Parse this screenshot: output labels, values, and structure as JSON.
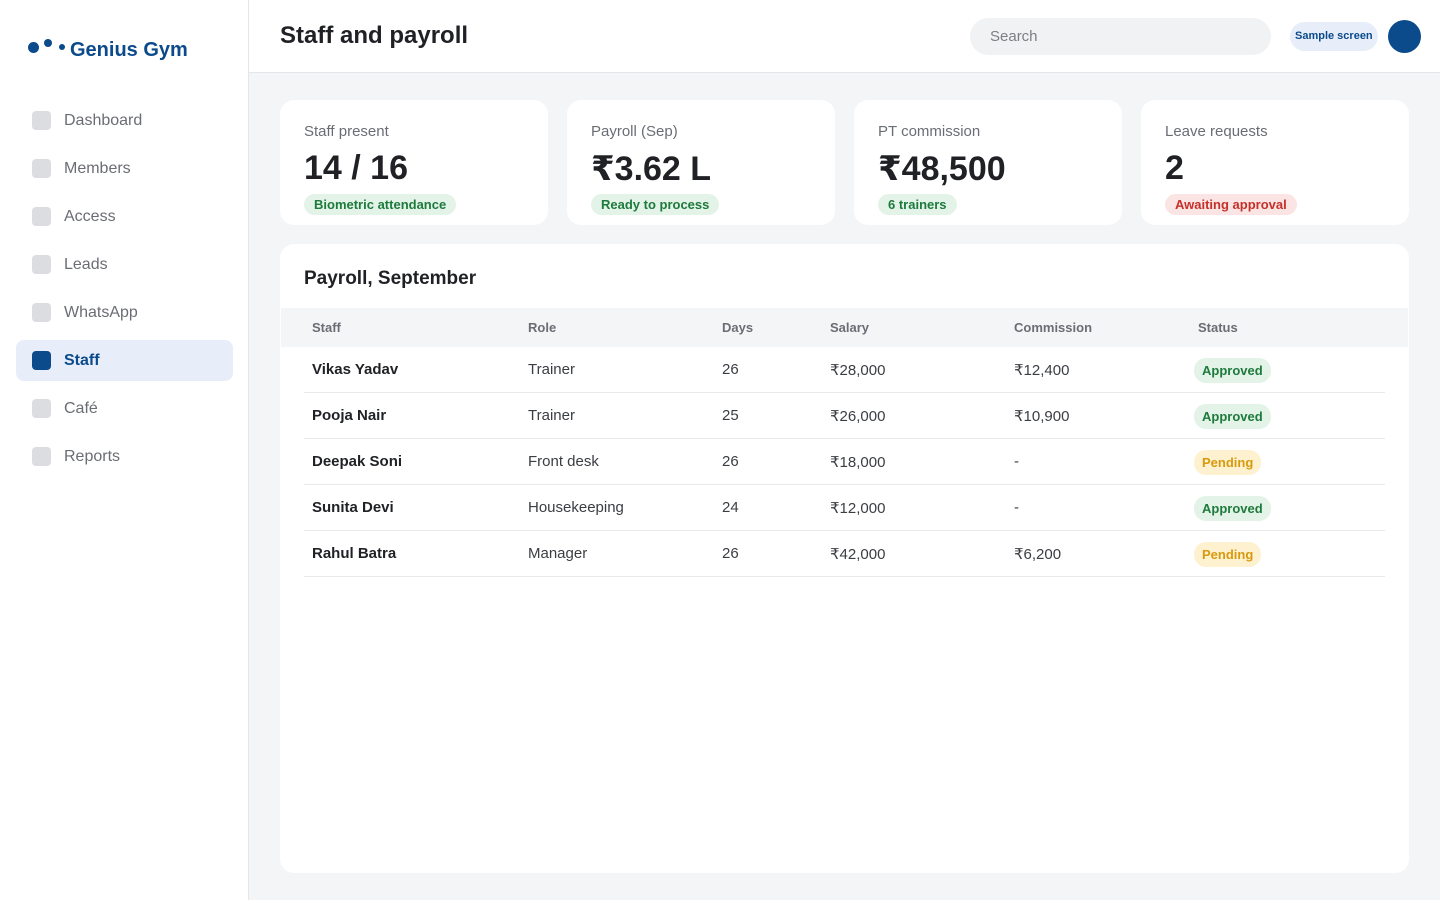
{
  "brand": {
    "name": "Genius Gym"
  },
  "sidebar": {
    "items": [
      {
        "label": "Dashboard",
        "icon": "dashboard-icon",
        "active": false
      },
      {
        "label": "Members",
        "icon": "members-icon",
        "active": false
      },
      {
        "label": "Access",
        "icon": "access-icon",
        "active": false
      },
      {
        "label": "Leads",
        "icon": "leads-icon",
        "active": false
      },
      {
        "label": "WhatsApp",
        "icon": "whatsapp-icon",
        "active": false
      },
      {
        "label": "Staff",
        "icon": "staff-icon",
        "active": true
      },
      {
        "label": "Café",
        "icon": "cafe-icon",
        "active": false
      },
      {
        "label": "Reports",
        "icon": "reports-icon",
        "active": false
      }
    ]
  },
  "header": {
    "title": "Staff and payroll",
    "search_placeholder": "Search",
    "search_value": "",
    "badge": "Sample screen",
    "avatar_icon": "user-avatar"
  },
  "stats": [
    {
      "label": "Staff present",
      "value": "14 / 16",
      "pill": "Biometric attendance",
      "pill_tone": "green"
    },
    {
      "label": "Payroll (Sep)",
      "value": "₹3.62 L",
      "pill": "Ready to process",
      "pill_tone": "green"
    },
    {
      "label": "PT commission",
      "value": "₹48,500",
      "pill": "6 trainers",
      "pill_tone": "green"
    },
    {
      "label": "Leave requests",
      "value": "2",
      "pill": "Awaiting approval",
      "pill_tone": "red"
    }
  ],
  "payroll": {
    "title": "Payroll, September",
    "columns": [
      "Staff",
      "Role",
      "Days",
      "Salary",
      "Commission",
      "Status"
    ],
    "rows": [
      {
        "staff": "Vikas Yadav",
        "role": "Trainer",
        "days": "26",
        "salary": "₹28,000",
        "commission": "₹12,400",
        "status": "Approved",
        "tone": "green"
      },
      {
        "staff": "Pooja Nair",
        "role": "Trainer",
        "days": "25",
        "salary": "₹26,000",
        "commission": "₹10,900",
        "status": "Approved",
        "tone": "green"
      },
      {
        "staff": "Deepak Soni",
        "role": "Front desk",
        "days": "26",
        "salary": "₹18,000",
        "commission": "-",
        "status": "Pending",
        "tone": "yellow"
      },
      {
        "staff": "Sunita Devi",
        "role": "Housekeeping",
        "days": "24",
        "salary": "₹12,000",
        "commission": "-",
        "status": "Approved",
        "tone": "green"
      },
      {
        "staff": "Rahul Batra",
        "role": "Manager",
        "days": "26",
        "salary": "₹42,000",
        "commission": "₹6,200",
        "status": "Pending",
        "tone": "yellow"
      }
    ]
  },
  "colors": {
    "brand": "#0b4a8b",
    "background": "#f4f5f7",
    "active_nav_bg": "#e7eefa",
    "success": "#1e7a3c",
    "warning": "#d79a0e",
    "danger": "#c5302a"
  }
}
